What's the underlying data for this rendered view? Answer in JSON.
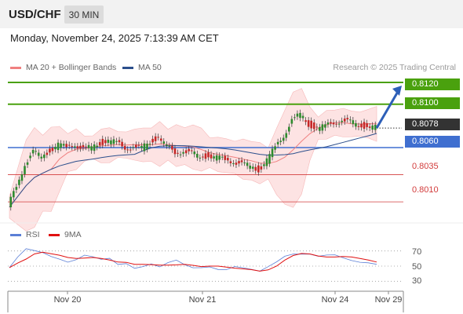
{
  "header": {
    "pair": "USD/CHF",
    "timeframe": "30 MIN"
  },
  "timestamp": "Monday, November 24, 2025 7:13:39 AM CET",
  "legend": {
    "bollinger": {
      "label": "MA 20 + Bollinger Bands",
      "color": "#f08080"
    },
    "ma50": {
      "label": "MA 50",
      "color": "#2c4f8c"
    },
    "rsi": {
      "label": "RSI",
      "color": "#5b7fd6"
    },
    "ma9": {
      "label": "9MA",
      "color": "#e01010"
    }
  },
  "credit": "Research © 2025 Trading Central",
  "levels": [
    {
      "value": "0.8120",
      "kind": "resistance",
      "color": "#4aa10e"
    },
    {
      "value": "0.8100",
      "kind": "resistance",
      "color": "#4aa10e"
    },
    {
      "value": "0.8078",
      "kind": "current",
      "color": "#333333"
    },
    {
      "value": "0.8060",
      "kind": "pivot",
      "color": "#3f6fd0"
    },
    {
      "value": "0.8035",
      "kind": "support",
      "color": "#d23c3c"
    },
    {
      "value": "0.8010",
      "kind": "support",
      "color": "#d23c3c"
    }
  ],
  "rsi_ticks": [
    "70",
    "50",
    "30"
  ],
  "x_ticks": [
    "Nov 20",
    "Nov 21",
    "Nov 24",
    "Nov 29"
  ],
  "chart_data": {
    "type": "candlestick",
    "price_series": [
      0.8005,
      0.8025,
      0.8045,
      0.8055,
      0.8052,
      0.8058,
      0.8062,
      0.806,
      0.8064,
      0.8058,
      0.806,
      0.8065,
      0.8066,
      0.8064,
      0.8061,
      0.806,
      0.8059,
      0.8066,
      0.807,
      0.806,
      0.8056,
      0.8057,
      0.8054,
      0.8052,
      0.8053,
      0.805,
      0.8049,
      0.8048,
      0.8044,
      0.8043,
      0.804,
      0.8048,
      0.806,
      0.8072,
      0.8085,
      0.809,
      0.8082,
      0.8078,
      0.8079,
      0.8084,
      0.8085,
      0.8083,
      0.8081,
      0.808,
      0.8078
    ],
    "forecast": {
      "from": 0.8078,
      "to": 0.812
    },
    "rsi_series": [
      48,
      60,
      70,
      68,
      67,
      64,
      62,
      58,
      60,
      64,
      60,
      56,
      58,
      52,
      55,
      50,
      52,
      54,
      48,
      52,
      55,
      50,
      48,
      50,
      52,
      48,
      46,
      48,
      45,
      43,
      42,
      50,
      58,
      66,
      68,
      66,
      64,
      60,
      62,
      64,
      62,
      60,
      58,
      56,
      52
    ],
    "rsi_ylim": [
      20,
      80
    ],
    "price_ylim": [
      0.7992,
      0.8128
    ]
  }
}
